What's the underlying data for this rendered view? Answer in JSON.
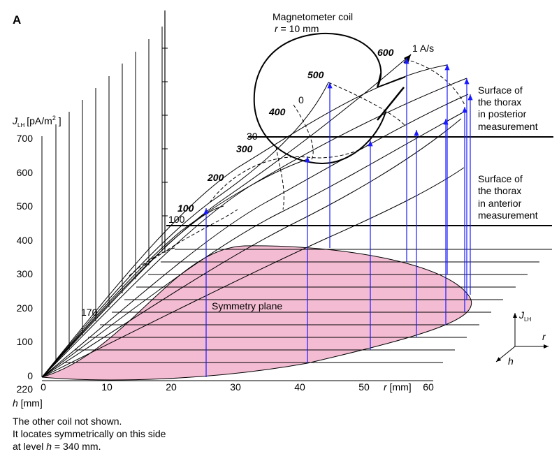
{
  "panel_label": "A",
  "coil": {
    "title": "Magnetometer coil",
    "r_label": "r",
    "r_value": " = 10 mm"
  },
  "current_label": "1 A/s",
  "axis": {
    "j_symbol": "J",
    "j_subscript": "LH",
    "j_unit_open": "[pA/m",
    "j_unit_exp": "2",
    "j_unit_close": " ]",
    "j_ticks": [
      "700",
      "600",
      "500",
      "400",
      "300",
      "200",
      "100",
      "0"
    ],
    "h_extra_tick": "220",
    "h_symbol": "h",
    "h_unit": " [mm]",
    "r_ticks": [
      "0",
      "10",
      "20",
      "30",
      "40",
      "50",
      "60"
    ],
    "r_symbol": "r",
    "r_unit": " [mm]"
  },
  "level_labels": [
    "100",
    "200",
    "300",
    "400",
    "500",
    "600"
  ],
  "height_markers": [
    "170",
    "100",
    "30",
    "0"
  ],
  "thorax_posterior": [
    "Surface of",
    "the thorax",
    "in posterior",
    "measurement"
  ],
  "thorax_anterior": [
    "Surface of",
    "the thorax",
    "in anterior",
    "measurement"
  ],
  "symmetry_label": "Symmetry plane",
  "axes_legend": {
    "j_symbol": "J",
    "j_subscript": "LH",
    "r": "r",
    "h": "h"
  },
  "footnote": {
    "line1": "The other coil not shown.",
    "line2": "It locates symmetrically on this side",
    "line3_prefix": "at level ",
    "line3_symbol": "h",
    "line3_suffix": " = 340 mm."
  },
  "colors": {
    "ellipse_fill": "#f4bcd2",
    "arrow": "#1a1aff",
    "line": "#000000"
  }
}
